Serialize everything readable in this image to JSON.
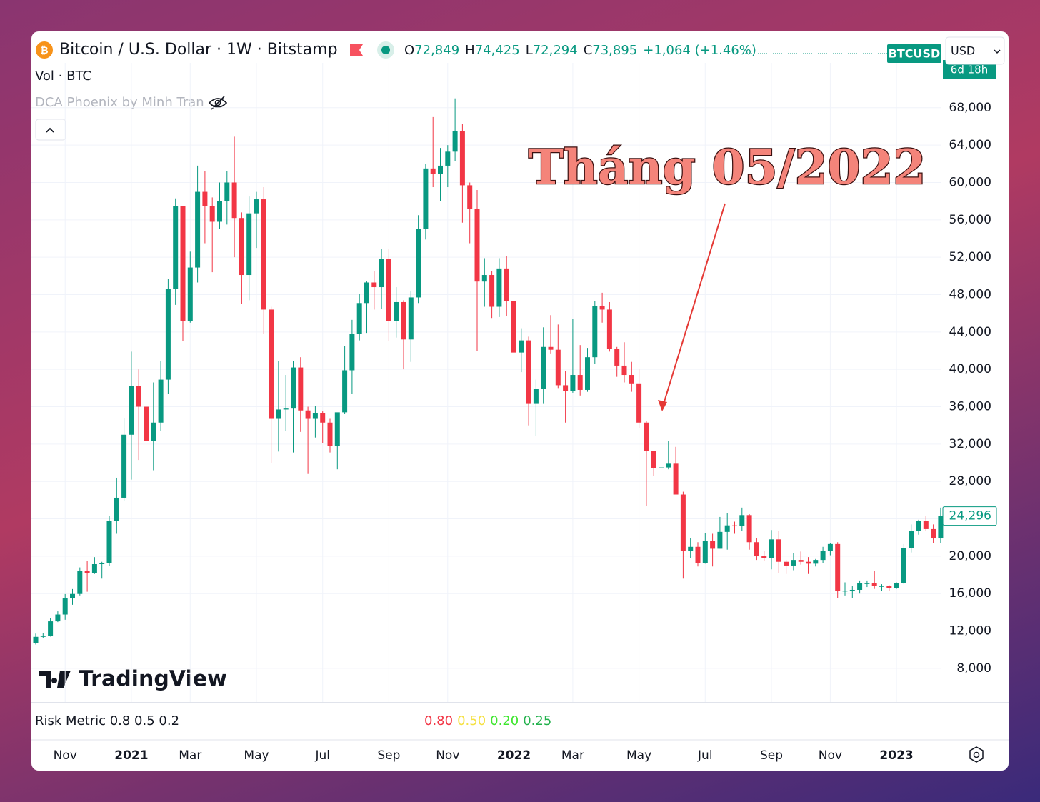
{
  "header": {
    "symbol_icon": "₿",
    "title": "Bitcoin / U.S. Dollar · 1W · Bitstamp",
    "o_label": "O",
    "o": "72,849",
    "h_label": "H",
    "h": "74,425",
    "l_label": "L",
    "l": "72,294",
    "c_label": "C",
    "c": "73,895",
    "change": "+1,064 (+1.46%)",
    "ticker": "BTCUSD",
    "countdown": "6d 18h",
    "currency": "USD",
    "volume": "Vol · BTC",
    "indicator": "DCA Phoenix by Minh Tran",
    "logo": "TradingView"
  },
  "risk_pane": {
    "title": "Risk Metric 0.8 0.5 0.2",
    "values": [
      {
        "text": "0.80",
        "color": "#f23645"
      },
      {
        "text": "0.50",
        "color": "#f5e142"
      },
      {
        "text": "0.20",
        "color": "#3ee62e"
      },
      {
        "text": "0.25",
        "color": "#22b14c"
      }
    ]
  },
  "chart_data": {
    "type": "candlestick",
    "up_color": "#089981",
    "down_color": "#f23645",
    "grid": true,
    "annotation": "Tháng 05/2022",
    "ylim": [
      4400,
      72800
    ],
    "yticks": [
      {
        "value": 8000,
        "label": "8,000"
      },
      {
        "value": 12000,
        "label": "12,000"
      },
      {
        "value": 16000,
        "label": "16,000"
      },
      {
        "value": 20000,
        "label": "20,000"
      },
      {
        "value": 24000,
        "label": "24,000"
      },
      {
        "value": 28000,
        "label": "28,000"
      },
      {
        "value": 32000,
        "label": "32,000"
      },
      {
        "value": 36000,
        "label": "36,000"
      },
      {
        "value": 40000,
        "label": "40,000"
      },
      {
        "value": 44000,
        "label": "44,000"
      },
      {
        "value": 48000,
        "label": "48,000"
      },
      {
        "value": 52000,
        "label": "52,000"
      },
      {
        "value": 56000,
        "label": "56,000"
      },
      {
        "value": 60000,
        "label": "60,000"
      },
      {
        "value": 64000,
        "label": "64,000"
      },
      {
        "value": 68000,
        "label": "68,000"
      }
    ],
    "last_price": {
      "value": 24296,
      "label": "24,296"
    },
    "x_labels": [
      "Nov",
      "2021",
      "Mar",
      "May",
      "Jul",
      "Sep",
      "Nov",
      "2022",
      "Mar",
      "May",
      "Jul",
      "Sep",
      "Nov",
      "2023"
    ],
    "candles": [
      [
        10670,
        11720,
        10550,
        11370
      ],
      [
        11370,
        11740,
        11200,
        11500
      ],
      [
        11500,
        13350,
        11400,
        13030
      ],
      [
        13030,
        14100,
        12950,
        13760
      ],
      [
        13760,
        15950,
        13200,
        15480
      ],
      [
        15480,
        16480,
        14800,
        15960
      ],
      [
        15960,
        18800,
        15800,
        18400
      ],
      [
        18400,
        19500,
        16200,
        18190
      ],
      [
        18190,
        19900,
        18100,
        19150
      ],
      [
        19150,
        19400,
        17600,
        19250
      ],
      [
        19250,
        24300,
        19000,
        23800
      ],
      [
        23800,
        28400,
        22400,
        26260
      ],
      [
        26260,
        34800,
        25900,
        33000
      ],
      [
        33000,
        41900,
        28200,
        38200
      ],
      [
        38200,
        40000,
        30300,
        36000
      ],
      [
        36000,
        37800,
        28900,
        32300
      ],
      [
        32300,
        38600,
        29200,
        34300
      ],
      [
        34300,
        40900,
        33400,
        38900
      ],
      [
        38900,
        49700,
        37400,
        48600
      ],
      [
        48600,
        58300,
        46900,
        57500
      ],
      [
        57500,
        57500,
        43000,
        45200
      ],
      [
        45200,
        52600,
        45000,
        50900
      ],
      [
        50900,
        61800,
        49300,
        59000
      ],
      [
        59000,
        61200,
        53500,
        57500
      ],
      [
        57500,
        58400,
        50400,
        55800
      ],
      [
        55800,
        60000,
        55000,
        58000
      ],
      [
        58000,
        61200,
        55500,
        60000
      ],
      [
        60000,
        64900,
        52000,
        56200
      ],
      [
        56200,
        56800,
        47000,
        50100
      ],
      [
        50100,
        58500,
        47400,
        56700
      ],
      [
        56700,
        59000,
        53000,
        58200
      ],
      [
        58200,
        59500,
        43800,
        46400
      ],
      [
        46400,
        46700,
        30000,
        34700
      ],
      [
        34700,
        40900,
        31200,
        35700
      ],
      [
        35700,
        39400,
        33400,
        35800
      ],
      [
        35800,
        40900,
        31100,
        40200
      ],
      [
        40200,
        41300,
        33300,
        35600
      ],
      [
        35600,
        36000,
        28800,
        34700
      ],
      [
        34700,
        36100,
        32700,
        35300
      ],
      [
        35300,
        35500,
        32100,
        34300
      ],
      [
        34300,
        34700,
        31100,
        31800
      ],
      [
        31800,
        35300,
        29300,
        35400
      ],
      [
        35400,
        42500,
        35200,
        39900
      ],
      [
        39900,
        45300,
        37400,
        43800
      ],
      [
        43800,
        48100,
        43100,
        47100
      ],
      [
        47100,
        49400,
        43900,
        49300
      ],
      [
        49300,
        50500,
        46400,
        48800
      ],
      [
        48800,
        52900,
        46500,
        51800
      ],
      [
        51800,
        52900,
        43000,
        45200
      ],
      [
        45200,
        48800,
        43400,
        47200
      ],
      [
        47200,
        47400,
        40000,
        43200
      ],
      [
        43200,
        48400,
        40800,
        47700
      ],
      [
        47700,
        56500,
        47100,
        55000
      ],
      [
        55000,
        62000,
        53900,
        61500
      ],
      [
        61500,
        67000,
        59500,
        60900
      ],
      [
        60900,
        63700,
        58000,
        61800
      ],
      [
        61800,
        64000,
        59500,
        63300
      ],
      [
        63300,
        69000,
        62300,
        65500
      ],
      [
        65500,
        66300,
        55700,
        59700
      ],
      [
        59700,
        60000,
        53500,
        57200
      ],
      [
        57200,
        59200,
        42000,
        49400
      ],
      [
        49400,
        51900,
        46700,
        50100
      ],
      [
        50100,
        50500,
        45500,
        46700
      ],
      [
        46700,
        51900,
        45600,
        50800
      ],
      [
        50800,
        52100,
        45700,
        47300
      ],
      [
        47300,
        47500,
        39700,
        41800
      ],
      [
        41800,
        44400,
        39700,
        43100
      ],
      [
        43100,
        43500,
        34000,
        36300
      ],
      [
        36300,
        38900,
        32900,
        37900
      ],
      [
        37900,
        44500,
        36300,
        42400
      ],
      [
        42400,
        45800,
        41700,
        42100
      ],
      [
        42100,
        44800,
        38000,
        38300
      ],
      [
        38300,
        39800,
        34300,
        37700
      ],
      [
        37700,
        45400,
        37500,
        39400
      ],
      [
        39400,
        42600,
        37200,
        37800
      ],
      [
        37800,
        42300,
        37600,
        41300
      ],
      [
        41300,
        47300,
        40600,
        46800
      ],
      [
        46800,
        48200,
        45000,
        46400
      ],
      [
        46400,
        47200,
        41900,
        42200
      ],
      [
        42200,
        42400,
        39200,
        40400
      ],
      [
        40400,
        42900,
        38600,
        39400
      ],
      [
        39400,
        40800,
        37600,
        38500
      ],
      [
        38500,
        40000,
        33700,
        34300
      ],
      [
        34300,
        34500,
        25400,
        31300
      ],
      [
        31300,
        31300,
        28600,
        29400
      ],
      [
        29400,
        30600,
        28000,
        29500
      ],
      [
        29500,
        32300,
        29300,
        29900
      ],
      [
        29900,
        31700,
        26600,
        26600
      ],
      [
        26600,
        26900,
        17600,
        20600
      ],
      [
        20600,
        21900,
        19800,
        21000
      ],
      [
        21000,
        21500,
        18900,
        19300
      ],
      [
        19300,
        22500,
        19200,
        21600
      ],
      [
        21600,
        22400,
        18900,
        20800
      ],
      [
        20800,
        24200,
        20800,
        22600
      ],
      [
        22600,
        24600,
        20700,
        23300
      ],
      [
        23300,
        23700,
        22400,
        23200
      ],
      [
        23200,
        25200,
        22700,
        24400
      ],
      [
        24400,
        24500,
        20700,
        21500
      ],
      [
        21500,
        21900,
        19600,
        20000
      ],
      [
        20000,
        20600,
        19500,
        19800
      ],
      [
        19800,
        22800,
        18600,
        21800
      ],
      [
        21800,
        22700,
        18200,
        19400
      ],
      [
        19400,
        19600,
        18100,
        19000
      ],
      [
        19000,
        20300,
        18500,
        19600
      ],
      [
        19600,
        20500,
        19100,
        19400
      ],
      [
        19400,
        19900,
        18100,
        19200
      ],
      [
        19200,
        19700,
        18900,
        19600
      ],
      [
        19600,
        21000,
        19300,
        20600
      ],
      [
        20600,
        21400,
        20100,
        21300
      ],
      [
        21300,
        21500,
        15500,
        16300
      ],
      [
        16300,
        17200,
        15800,
        16300
      ],
      [
        16300,
        16800,
        15500,
        16400
      ],
      [
        16400,
        17400,
        16000,
        17100
      ],
      [
        17100,
        17400,
        16700,
        17100
      ],
      [
        17100,
        18400,
        16500,
        16800
      ],
      [
        16800,
        17000,
        16300,
        16800
      ],
      [
        16800,
        16900,
        16300,
        16600
      ],
      [
        16600,
        17200,
        16500,
        17100
      ],
      [
        17100,
        21300,
        17000,
        20900
      ],
      [
        20900,
        23400,
        20400,
        22700
      ],
      [
        22700,
        23900,
        22300,
        23800
      ],
      [
        23800,
        24300,
        22700,
        22900
      ],
      [
        22900,
        23400,
        21400,
        21900
      ],
      [
        21900,
        25200,
        21400,
        24296
      ]
    ]
  }
}
